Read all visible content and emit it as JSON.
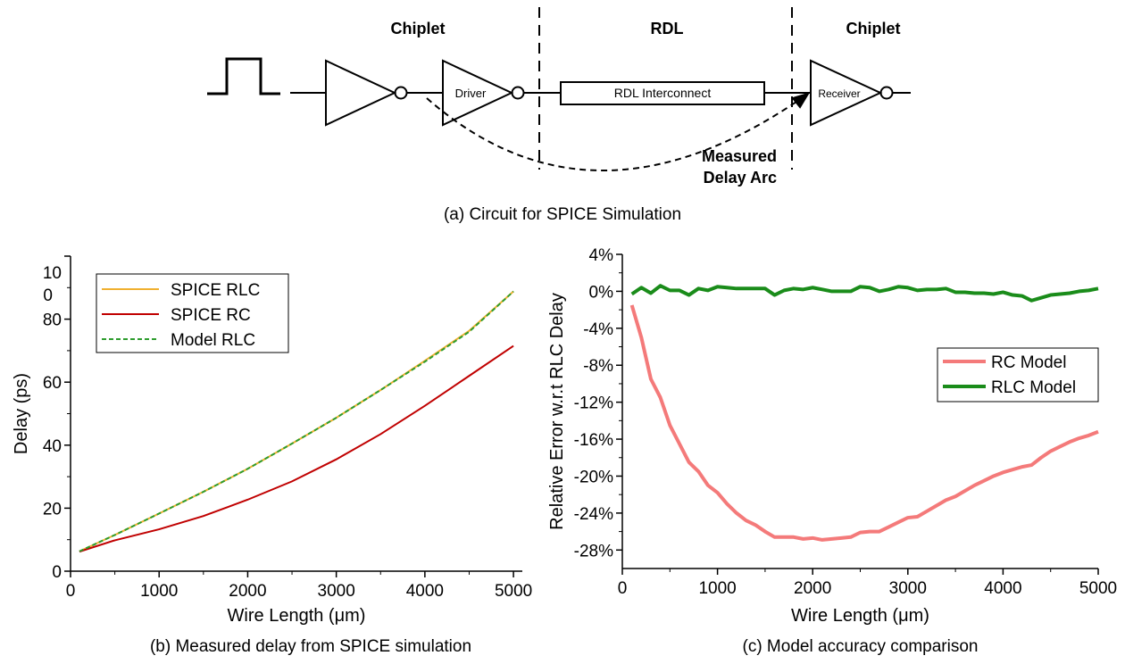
{
  "circuit": {
    "sections": [
      "Chiplet",
      "RDL",
      "Chiplet"
    ],
    "driver_label": "Driver",
    "interconnect_label": "RDL Interconnect",
    "receiver_label": "Receiver",
    "delay_arc_label_line1": "Measured",
    "delay_arc_label_line2": "Delay Arc",
    "caption": "(a) Circuit for SPICE Simulation"
  },
  "chart_data": [
    {
      "type": "line",
      "title": "",
      "caption": "(b) Measured delay from SPICE simulation",
      "xlabel": "Wire Length (μm)",
      "ylabel": "Delay (ps)",
      "xlim": [
        0,
        5100
      ],
      "ylim": [
        0,
        100
      ],
      "x_ticks": [
        "0",
        "1000",
        "2000",
        "3000",
        "4000",
        "5000"
      ],
      "y_ticks": [
        "0",
        "20",
        "40",
        "60",
        "80"
      ],
      "y_top_tick_line1": "10",
      "y_top_tick_line2": "0",
      "legend_position": "top-left",
      "x": [
        100,
        500,
        1000,
        1500,
        2000,
        2500,
        3000,
        3500,
        4000,
        4500,
        5000
      ],
      "series": [
        {
          "name": "SPICE RLC",
          "color": "#f0b030",
          "style": "solid",
          "values": [
            6.3,
            11.5,
            18.3,
            25.2,
            32.5,
            40.5,
            48.7,
            57.5,
            66.8,
            76.3,
            88.8
          ]
        },
        {
          "name": "SPICE RC",
          "color": "#c00000",
          "style": "solid",
          "values": [
            6.2,
            9.8,
            13.3,
            17.5,
            22.7,
            28.5,
            35.5,
            43.5,
            52.5,
            62.0,
            71.5
          ]
        },
        {
          "name": "Model RLC",
          "color": "#2d9c2d",
          "style": "dashed",
          "values": [
            6.3,
            11.5,
            18.3,
            25.2,
            32.5,
            40.5,
            48.7,
            57.5,
            66.5,
            76.0,
            88.8
          ]
        }
      ]
    },
    {
      "type": "line",
      "title": "",
      "caption": "(c) Model accuracy comparison",
      "xlabel": "Wire Length (μm)",
      "ylabel": "Relative Error w.r.t RLC Delay",
      "xlim": [
        0,
        5000
      ],
      "ylim": [
        -30,
        4
      ],
      "x_ticks": [
        "0",
        "1000",
        "2000",
        "3000",
        "4000",
        "5000"
      ],
      "y_ticks": [
        "4%",
        "0%",
        "-4%",
        "-8%",
        "-12%",
        "-16%",
        "-20%",
        "-24%",
        "-28%"
      ],
      "legend_position": "right",
      "x": [
        100,
        200,
        300,
        400,
        500,
        600,
        700,
        800,
        900,
        1000,
        1100,
        1200,
        1300,
        1400,
        1500,
        1600,
        1700,
        1800,
        1900,
        2000,
        2100,
        2200,
        2300,
        2400,
        2500,
        2600,
        2700,
        2800,
        2900,
        3000,
        3100,
        3200,
        3300,
        3400,
        3500,
        3600,
        3700,
        3800,
        3900,
        4000,
        4100,
        4200,
        4300,
        4400,
        4500,
        4600,
        4700,
        4800,
        4900,
        5000
      ],
      "series": [
        {
          "name": "RC Model",
          "color": "#f47a7a",
          "values": [
            -1.5,
            -5.0,
            -9.5,
            -11.5,
            -14.5,
            -16.5,
            -18.5,
            -19.5,
            -21.0,
            -21.8,
            -23.0,
            -24.0,
            -24.8,
            -25.3,
            -26.0,
            -26.6,
            -26.6,
            -26.6,
            -26.8,
            -26.7,
            -26.9,
            -26.8,
            -26.7,
            -26.6,
            -26.1,
            -26.0,
            -26.0,
            -25.5,
            -25.0,
            -24.5,
            -24.4,
            -23.8,
            -23.2,
            -22.6,
            -22.2,
            -21.6,
            -21.0,
            -20.5,
            -20.0,
            -19.6,
            -19.3,
            -19.0,
            -18.8,
            -18.0,
            -17.3,
            -16.8,
            -16.3,
            -15.9,
            -15.6,
            -15.2
          ]
        },
        {
          "name": "RLC Model",
          "color": "#1a8c1a",
          "values": [
            -0.3,
            0.4,
            -0.2,
            0.6,
            0.1,
            0.1,
            -0.4,
            0.3,
            0.1,
            0.5,
            0.4,
            0.3,
            0.3,
            0.3,
            0.3,
            -0.4,
            0.1,
            0.3,
            0.2,
            0.4,
            0.2,
            0.0,
            0.0,
            0.0,
            0.5,
            0.4,
            0.0,
            0.2,
            0.5,
            0.4,
            0.1,
            0.2,
            0.2,
            0.3,
            -0.1,
            -0.1,
            -0.2,
            -0.2,
            -0.3,
            -0.1,
            -0.4,
            -0.5,
            -1.0,
            -0.7,
            -0.4,
            -0.3,
            -0.2,
            0.0,
            0.1,
            0.3
          ]
        }
      ]
    }
  ]
}
